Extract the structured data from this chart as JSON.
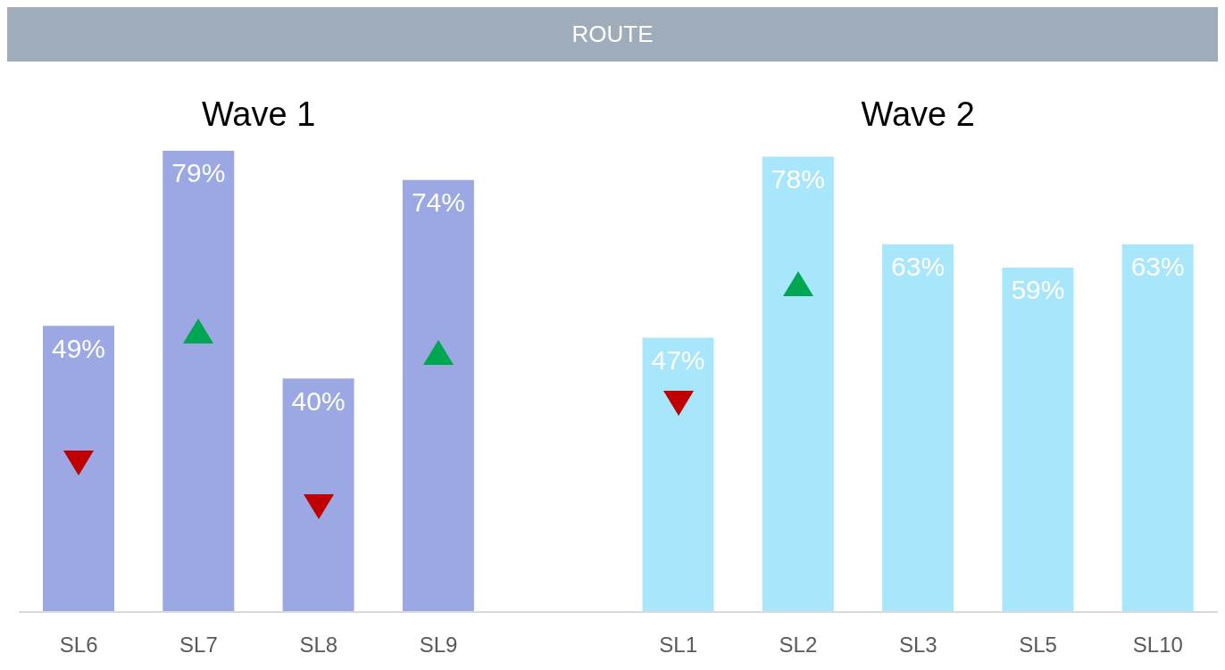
{
  "chart_data": {
    "type": "bar",
    "title": "ROUTE",
    "categories": [
      "SL6",
      "SL7",
      "SL8",
      "SL9",
      null,
      "SL1",
      "SL2",
      "SL3",
      "SL5",
      "SL10"
    ],
    "values": [
      49,
      79,
      40,
      74,
      null,
      47,
      78,
      63,
      59,
      63
    ],
    "value_labels": [
      "49%",
      "79%",
      "40%",
      "74%",
      null,
      "47%",
      "78%",
      "63%",
      "59%",
      "63%"
    ],
    "colors": [
      "#9ba8e3",
      "#9ba8e3",
      "#9ba8e3",
      "#9ba8e3",
      "#9ba8e3",
      "#a8e6fb",
      "#a8e6fb",
      "#a8e6fb",
      "#a8e6fb",
      "#a8e6fb"
    ],
    "annotations": [
      "Wave 1",
      "Wave 2"
    ],
    "tick_labels": "x",
    "legend": false,
    "grid": false
  }
}
